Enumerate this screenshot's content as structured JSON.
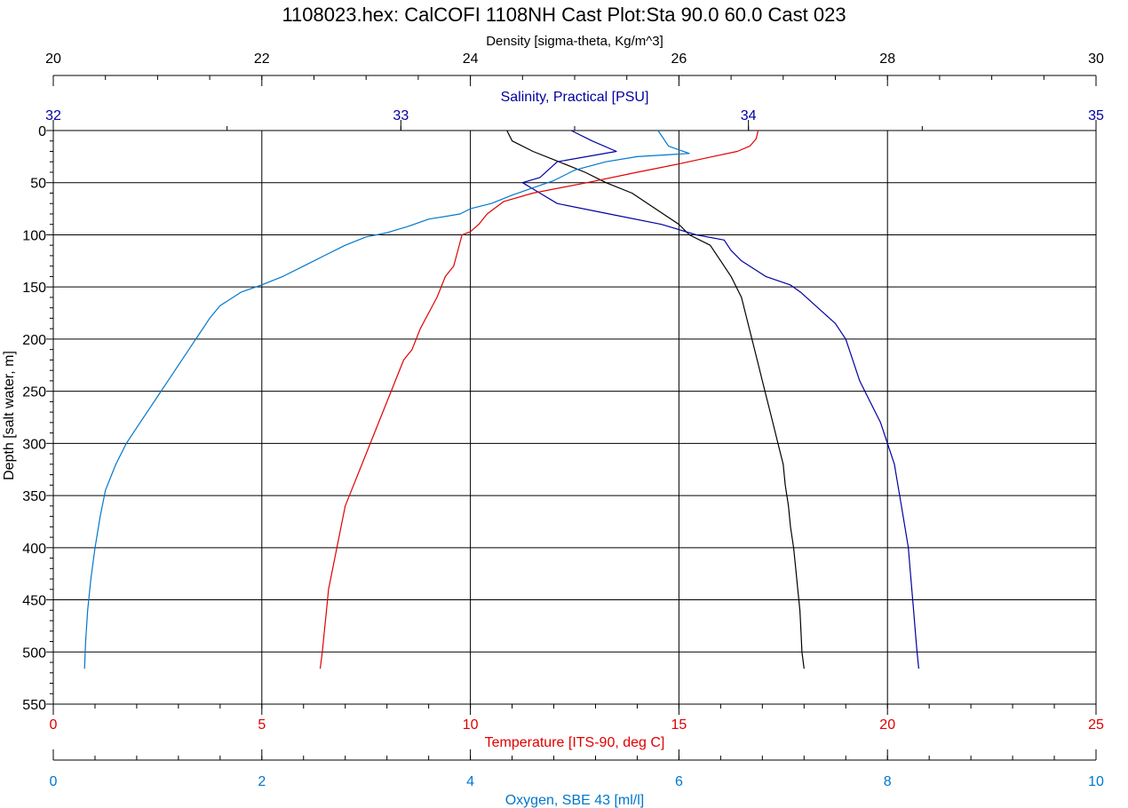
{
  "chart_data": {
    "type": "line",
    "title": "1108023.hex: CalCOFI 1108NH Cast Plot:Sta 90.0 60.0 Cast 023",
    "colors": {
      "density": "#000000",
      "salinity": "#0000a0",
      "temperature": "#e00000",
      "oxygen": "#0077cc",
      "grid": "#000000"
    },
    "grid": true,
    "y_axis": {
      "label": "Depth [salt water, m]",
      "range": [
        0,
        550
      ],
      "inverted": true,
      "ticks": [
        "0",
        "50",
        "100",
        "150",
        "200",
        "250",
        "300",
        "350",
        "400",
        "450",
        "500",
        "550"
      ],
      "tick_values": [
        0,
        50,
        100,
        150,
        200,
        250,
        300,
        350,
        400,
        450,
        500,
        550
      ]
    },
    "x_axes": [
      {
        "id": "density",
        "label": "Density [sigma-theta, Kg/m^3]",
        "range": [
          20,
          30
        ],
        "ticks": [
          "20",
          "22",
          "24",
          "26",
          "28",
          "30"
        ],
        "tick_values": [
          20,
          22,
          24,
          26,
          28,
          30
        ],
        "position": "top"
      },
      {
        "id": "salinity",
        "label": "Salinity, Practical [PSU]",
        "range": [
          32,
          35
        ],
        "ticks": [
          "32",
          "33",
          "34",
          "35"
        ],
        "tick_values": [
          32,
          33,
          34,
          35
        ],
        "position": "top"
      },
      {
        "id": "temperature",
        "label": "Temperature [ITS-90, deg C]",
        "range": [
          0,
          25
        ],
        "ticks": [
          "0",
          "5",
          "10",
          "15",
          "20",
          "25"
        ],
        "tick_values": [
          0,
          5,
          10,
          15,
          20,
          25
        ],
        "position": "bottom"
      },
      {
        "id": "oxygen",
        "label": "Oxygen, SBE 43 [ml/l]",
        "range": [
          0,
          10
        ],
        "ticks": [
          "0",
          "2",
          "4",
          "6",
          "8",
          "10"
        ],
        "tick_values": [
          0,
          2,
          4,
          6,
          8,
          10
        ],
        "position": "bottom"
      }
    ],
    "series": [
      {
        "axis": "density",
        "points": [
          [
            24.35,
            0
          ],
          [
            24.4,
            10
          ],
          [
            24.6,
            20
          ],
          [
            24.85,
            30
          ],
          [
            25.1,
            40
          ],
          [
            25.3,
            50
          ],
          [
            25.55,
            60
          ],
          [
            25.7,
            70
          ],
          [
            25.85,
            80
          ],
          [
            26.0,
            90
          ],
          [
            26.1,
            100
          ],
          [
            26.3,
            110
          ],
          [
            26.4,
            125
          ],
          [
            26.5,
            140
          ],
          [
            26.6,
            160
          ],
          [
            26.65,
            180
          ],
          [
            26.7,
            200
          ],
          [
            26.75,
            220
          ],
          [
            26.8,
            240
          ],
          [
            26.85,
            260
          ],
          [
            26.9,
            280
          ],
          [
            26.95,
            300
          ],
          [
            27.0,
            320
          ],
          [
            27.02,
            340
          ],
          [
            27.05,
            360
          ],
          [
            27.07,
            380
          ],
          [
            27.1,
            400
          ],
          [
            27.12,
            420
          ],
          [
            27.14,
            440
          ],
          [
            27.16,
            460
          ],
          [
            27.17,
            480
          ],
          [
            27.18,
            500
          ],
          [
            27.2,
            516
          ]
        ]
      },
      {
        "axis": "salinity",
        "points": [
          [
            33.49,
            0
          ],
          [
            33.55,
            10
          ],
          [
            33.62,
            20
          ],
          [
            33.45,
            30
          ],
          [
            33.4,
            45
          ],
          [
            33.35,
            50
          ],
          [
            33.4,
            60
          ],
          [
            33.45,
            70
          ],
          [
            33.6,
            80
          ],
          [
            33.75,
            90
          ],
          [
            33.85,
            100
          ],
          [
            33.93,
            105
          ],
          [
            33.95,
            115
          ],
          [
            33.98,
            125
          ],
          [
            34.05,
            140
          ],
          [
            34.12,
            148
          ],
          [
            34.15,
            155
          ],
          [
            34.2,
            170
          ],
          [
            34.25,
            185
          ],
          [
            34.28,
            200
          ],
          [
            34.3,
            220
          ],
          [
            34.32,
            240
          ],
          [
            34.35,
            260
          ],
          [
            34.38,
            280
          ],
          [
            34.4,
            300
          ],
          [
            34.42,
            320
          ],
          [
            34.43,
            340
          ],
          [
            34.44,
            360
          ],
          [
            34.45,
            380
          ],
          [
            34.46,
            400
          ],
          [
            34.465,
            420
          ],
          [
            34.47,
            440
          ],
          [
            34.475,
            460
          ],
          [
            34.48,
            480
          ],
          [
            34.485,
            500
          ],
          [
            34.49,
            516
          ]
        ]
      },
      {
        "axis": "temperature",
        "points": [
          [
            16.9,
            0
          ],
          [
            16.85,
            8
          ],
          [
            16.7,
            15
          ],
          [
            16.4,
            20
          ],
          [
            15.8,
            25
          ],
          [
            15.0,
            32
          ],
          [
            14.0,
            40
          ],
          [
            12.8,
            50
          ],
          [
            11.5,
            60
          ],
          [
            10.8,
            68
          ],
          [
            10.4,
            80
          ],
          [
            10.2,
            90
          ],
          [
            10.0,
            97
          ],
          [
            9.8,
            100
          ],
          [
            9.7,
            115
          ],
          [
            9.6,
            130
          ],
          [
            9.4,
            140
          ],
          [
            9.3,
            150
          ],
          [
            9.2,
            160
          ],
          [
            9.0,
            175
          ],
          [
            8.8,
            190
          ],
          [
            8.6,
            210
          ],
          [
            8.4,
            220
          ],
          [
            8.2,
            240
          ],
          [
            8.0,
            260
          ],
          [
            7.8,
            280
          ],
          [
            7.6,
            300
          ],
          [
            7.4,
            320
          ],
          [
            7.2,
            340
          ],
          [
            7.0,
            360
          ],
          [
            6.9,
            380
          ],
          [
            6.8,
            400
          ],
          [
            6.7,
            420
          ],
          [
            6.6,
            440
          ],
          [
            6.55,
            460
          ],
          [
            6.5,
            480
          ],
          [
            6.45,
            500
          ],
          [
            6.4,
            516
          ]
        ]
      },
      {
        "axis": "oxygen",
        "points": [
          [
            5.8,
            0
          ],
          [
            5.9,
            15
          ],
          [
            6.1,
            22
          ],
          [
            5.6,
            25
          ],
          [
            5.3,
            30
          ],
          [
            5.0,
            38
          ],
          [
            4.8,
            48
          ],
          [
            4.6,
            55
          ],
          [
            4.4,
            62
          ],
          [
            4.2,
            70
          ],
          [
            4.0,
            75
          ],
          [
            3.9,
            80
          ],
          [
            3.6,
            85
          ],
          [
            3.4,
            92
          ],
          [
            3.2,
            98
          ],
          [
            3.0,
            102
          ],
          [
            2.8,
            110
          ],
          [
            2.6,
            120
          ],
          [
            2.4,
            130
          ],
          [
            2.2,
            140
          ],
          [
            2.0,
            148
          ],
          [
            1.8,
            155
          ],
          [
            1.6,
            168
          ],
          [
            1.5,
            180
          ],
          [
            1.4,
            195
          ],
          [
            1.3,
            210
          ],
          [
            1.2,
            225
          ],
          [
            1.1,
            240
          ],
          [
            1.0,
            255
          ],
          [
            0.9,
            270
          ],
          [
            0.8,
            285
          ],
          [
            0.7,
            300
          ],
          [
            0.6,
            320
          ],
          [
            0.5,
            345
          ],
          [
            0.45,
            370
          ],
          [
            0.4,
            400
          ],
          [
            0.36,
            430
          ],
          [
            0.33,
            460
          ],
          [
            0.31,
            490
          ],
          [
            0.3,
            516
          ]
        ]
      }
    ]
  }
}
